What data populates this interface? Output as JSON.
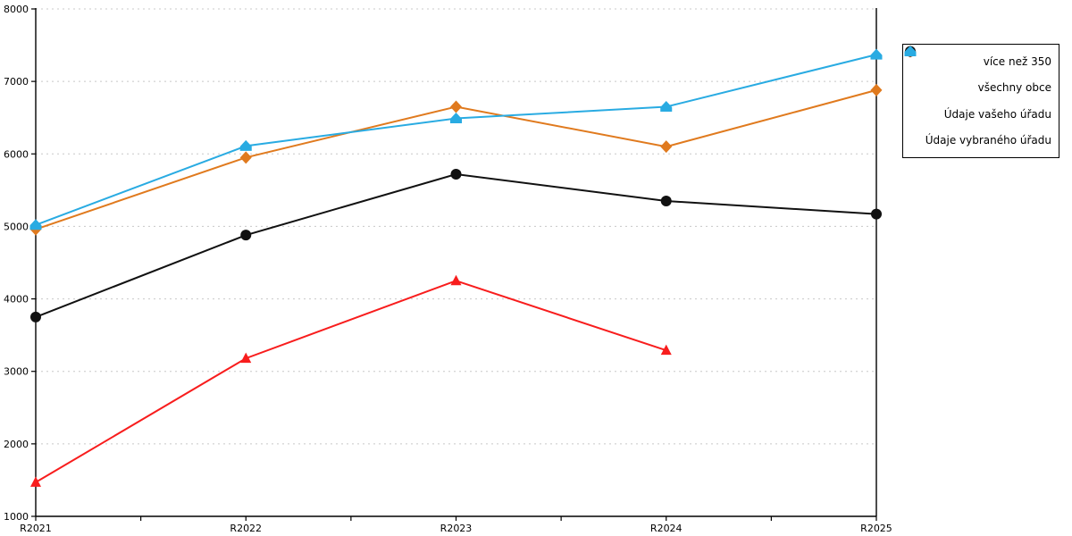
{
  "chart_data": {
    "type": "line",
    "title": "",
    "xlabel": "",
    "ylabel": "",
    "x_categories": [
      "R2021",
      "R2022",
      "R2023",
      "R2024",
      "R2025"
    ],
    "y_ticks": [
      1000,
      2000,
      3000,
      4000,
      5000,
      6000,
      7000,
      8000
    ],
    "y_tick_labels": [
      "1000",
      "2000",
      "3000",
      "4000",
      "5000",
      "6000",
      "7000",
      "8000"
    ],
    "ylim": [
      1000,
      8000
    ],
    "grid": "horizontal-dashed",
    "grid_color": "#c8c8c8",
    "axis_color": "#000000",
    "background_color": "#ffffff",
    "legend_position": "right-outside",
    "series": [
      {
        "name": "více než 350",
        "color": "#E07A1E",
        "marker": "diamond",
        "values": [
          4960,
          5950,
          6650,
          6100,
          6880
        ]
      },
      {
        "name": "všechny obce",
        "color": "#111111",
        "marker": "circle",
        "values": [
          3750,
          4880,
          5720,
          5350,
          5170
        ]
      },
      {
        "name": "Údaje vašeho úřadu",
        "color": "#F81D1D",
        "marker": "triangle",
        "values": [
          1470,
          3180,
          4250,
          3290,
          null
        ]
      },
      {
        "name": "Údaje vybraného úřadu",
        "color": "#29ABE2",
        "marker": "house",
        "values": [
          5020,
          6110,
          6490,
          6650,
          7370
        ]
      }
    ]
  }
}
